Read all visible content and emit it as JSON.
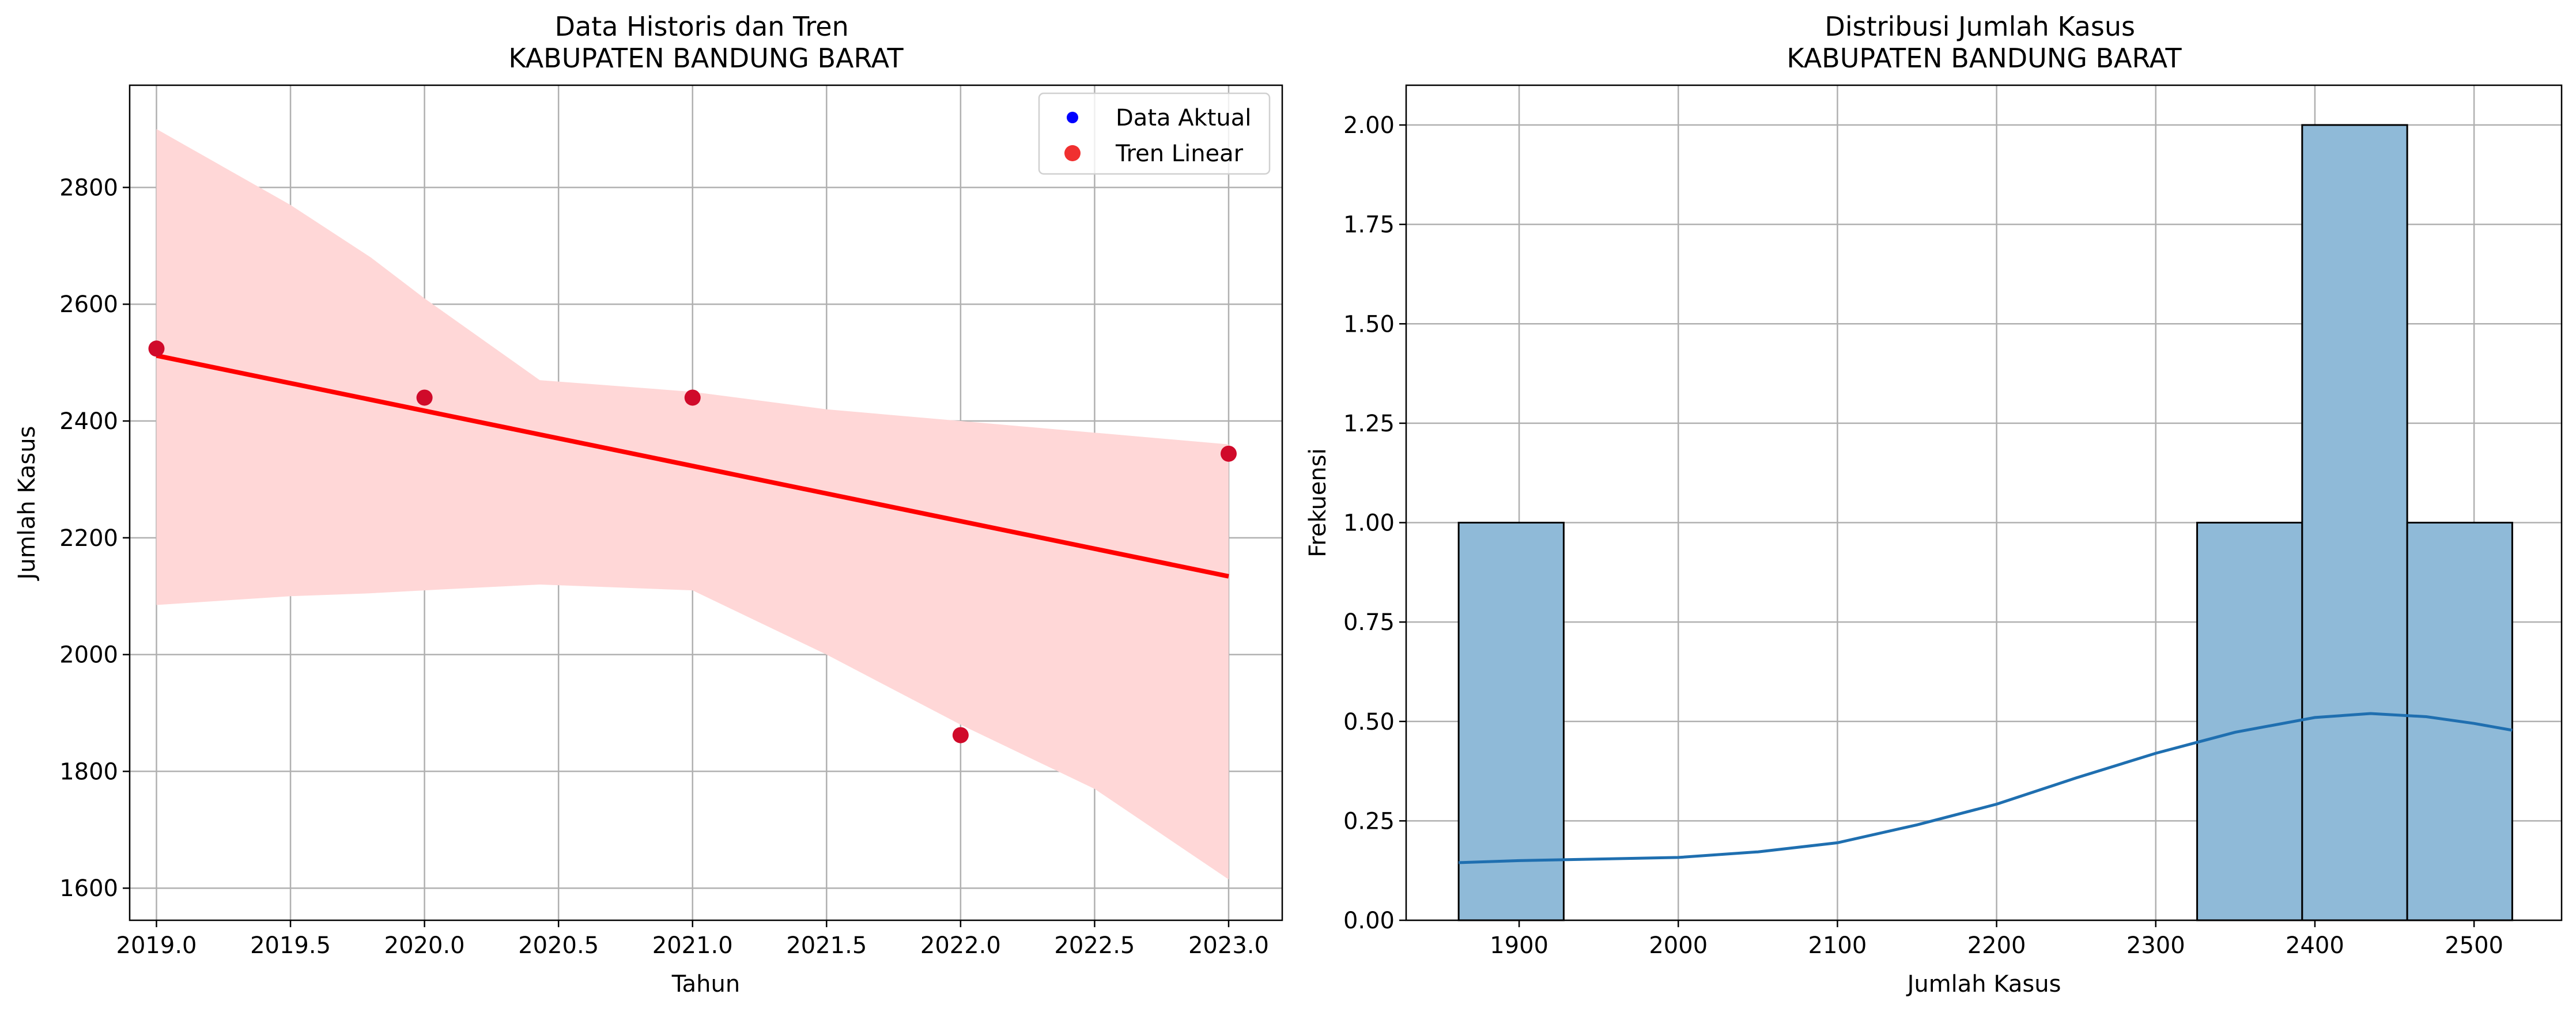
{
  "chart_data": [
    {
      "type": "scatter",
      "title": "Data Historis dan Tren\nKABUPATEN BANDUNG BARAT",
      "xlabel": "Tahun",
      "ylabel": "Jumlah Kasus",
      "xlim": [
        2018.9,
        2023.2
      ],
      "ylim": [
        1545,
        2975
      ],
      "xticks": [
        2019.0,
        2019.5,
        2020.0,
        2020.5,
        2021.0,
        2021.5,
        2022.0,
        2022.5,
        2023.0
      ],
      "xtick_labels": [
        "2019.0",
        "2019.5",
        "2020.0",
        "2020.5",
        "2021.0",
        "2021.5",
        "2022.0",
        "2022.5",
        "2023.0"
      ],
      "yticks": [
        1600,
        1800,
        2000,
        2200,
        2400,
        2600,
        2800
      ],
      "ytick_labels": [
        "1600",
        "1800",
        "2000",
        "2200",
        "2400",
        "2600",
        "2800"
      ],
      "grid": true,
      "legend": {
        "placement": "top-right",
        "entries": [
          {
            "label": "Data Aktual",
            "color": "#0000ff"
          },
          {
            "label": "Tren Linear",
            "color": "#f03030"
          }
        ]
      },
      "series": [
        {
          "name": "Data Aktual",
          "kind": "scatter",
          "color": "#d00a2a",
          "x": [
            2019,
            2020,
            2021,
            2022,
            2023
          ],
          "y": [
            2524,
            2440,
            2440,
            1862,
            2344
          ]
        },
        {
          "name": "Tren Linear",
          "kind": "regression-line",
          "color": "#ff0000",
          "x": [
            2019,
            2023
          ],
          "y": [
            2512,
            2134
          ]
        }
      ],
      "confidence_band": {
        "color": "#ffd7d7",
        "x": [
          2019.0,
          2019.5,
          2019.8,
          2020.0,
          2020.43,
          2021.0,
          2021.5,
          2022.0,
          2022.5,
          2023.0
        ],
        "upper": [
          2900,
          2770,
          2680,
          2610,
          2470,
          2450,
          2420,
          2400,
          2380,
          2360
        ],
        "lower": [
          2085,
          2100,
          2105,
          2110,
          2120,
          2110,
          2000,
          1880,
          1770,
          1615
        ]
      }
    },
    {
      "type": "bar",
      "subtype": "histogram",
      "title": "Distribusi Jumlah Kasus\nKABUPATEN BANDUNG BARAT",
      "xlabel": "Jumlah Kasus",
      "ylabel": "Frekuensi",
      "xlim": [
        1829,
        2555
      ],
      "ylim": [
        0,
        2.1
      ],
      "xticks": [
        1900,
        2000,
        2100,
        2200,
        2300,
        2400,
        2500
      ],
      "xtick_labels": [
        "1900",
        "2000",
        "2100",
        "2200",
        "2300",
        "2400",
        "2500"
      ],
      "yticks": [
        0,
        0.25,
        0.5,
        0.75,
        1.0,
        1.25,
        1.5,
        1.75,
        2.0
      ],
      "ytick_labels": [
        "0.00",
        "0.25",
        "0.50",
        "0.75",
        "1.00",
        "1.25",
        "1.50",
        "1.75",
        "2.00"
      ],
      "grid": true,
      "bar_color": "#8fbad8",
      "bars": [
        {
          "x0": 1862,
          "x1": 1928,
          "count": 1
        },
        {
          "x0": 2326,
          "x1": 2392,
          "count": 1
        },
        {
          "x0": 2392,
          "x1": 2458,
          "count": 2
        },
        {
          "x0": 2458,
          "x1": 2524,
          "count": 1
        }
      ],
      "kde": {
        "color": "#1f6fb0",
        "x": [
          1862,
          1900,
          2000,
          2050,
          2100,
          2150,
          2200,
          2250,
          2300,
          2350,
          2400,
          2435,
          2470,
          2500,
          2524
        ],
        "y": [
          0.145,
          0.15,
          0.158,
          0.172,
          0.195,
          0.24,
          0.292,
          0.358,
          0.42,
          0.473,
          0.51,
          0.52,
          0.512,
          0.495,
          0.478
        ]
      }
    }
  ]
}
